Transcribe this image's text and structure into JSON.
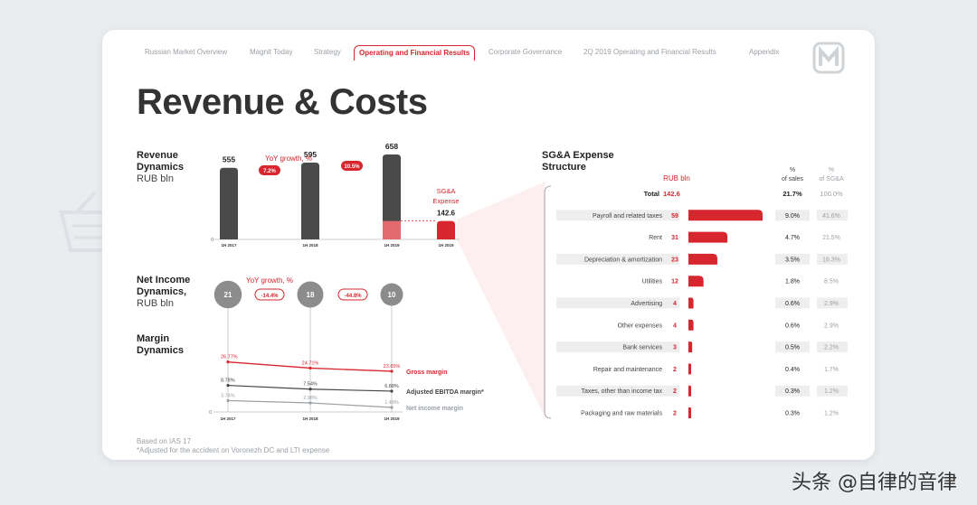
{
  "nav": {
    "items": [
      "Russian Market Overview",
      "Magnit Today",
      "Strategy",
      "Operating and Financial Results",
      "Corporate Governance",
      "2Q 2019 Operating and Financial Results",
      "Appendix"
    ],
    "active": "Operating and Financial Results"
  },
  "page_title": "Revenue & Costs",
  "revenue": {
    "label_line1": "Revenue",
    "label_line2": "Dynamics",
    "label_unit": "RUB bln",
    "yoy_label": "YoY growth, %",
    "sga_label_line1": "SG&A",
    "sga_label_line2": "Expense"
  },
  "net_income": {
    "label_line1": "Net Income",
    "label_line2": "Dynamics,",
    "label_unit": "RUB bln",
    "yoy_label": "YoY growth, %"
  },
  "margin": {
    "label_line1": "Margin",
    "label_line2": "Dynamics"
  },
  "sga": {
    "title_line1": "SG&A Expense",
    "title_line2": "Structure",
    "col_rub": "RUB bln",
    "col_sales_line1": "%",
    "col_sales_line2": "of sales",
    "col_sga_line1": "%",
    "col_sga_line2": "of SG&A"
  },
  "footnotes": {
    "line1": "Based on IAS 17",
    "line2": "*Adjusted for the accident on Voronezh DC and LTI expense"
  },
  "watermark": "头条 @自律的音律",
  "colors": {
    "accent": "#d7262e",
    "dark_bar": "#4a4a4a",
    "grey_bubble": "#8c8c8c",
    "muted": "#9aa0a6"
  },
  "chart_data": [
    {
      "type": "bar",
      "title": "Revenue Dynamics",
      "ylabel": "RUB bln",
      "categories": [
        "1H 2017",
        "1H 2018",
        "1H 2019",
        "1H 2019"
      ],
      "values": [
        555,
        595,
        658,
        142.6
      ],
      "value_labels": [
        "555",
        "595",
        "658",
        "142.6"
      ],
      "sga_in_revenue_2019": 142.6,
      "yoy_growth_labels": [
        "7.2%",
        "10.5%"
      ],
      "y_tick": "0"
    },
    {
      "type": "scatter",
      "title": "Net Income Dynamics",
      "ylabel": "RUB bln",
      "categories": [
        "1H 2017",
        "1H 2018",
        "1H 2019"
      ],
      "values": [
        21,
        18,
        10
      ],
      "value_labels": [
        "21",
        "18",
        "10"
      ],
      "yoy_growth_labels": [
        "-14.4%",
        "-44.8%"
      ]
    },
    {
      "type": "line",
      "title": "Margin Dynamics",
      "categories": [
        "1H 2017",
        "1H 2018",
        "1H 2019"
      ],
      "y_tick": "0",
      "series": [
        {
          "name": "Gross margin",
          "values": [
            26.77,
            24.71,
            23.65
          ],
          "labels": [
            "26.77%",
            "24.71%",
            "23.65%"
          ],
          "color": "#d7262e"
        },
        {
          "name": "Adjusted EBITDA margin*",
          "values": [
            8.78,
            7.54,
            6.88
          ],
          "labels": [
            "8.78%",
            "7.54%",
            "6.88%"
          ],
          "color": "#444444"
        },
        {
          "name": "Net income margin",
          "values": [
            3.74,
            2.98,
            1.49
          ],
          "labels": [
            "3.74%",
            "2.98%",
            "1.49%"
          ],
          "color": "#9aa0a6"
        }
      ]
    },
    {
      "type": "bar",
      "orientation": "horizontal",
      "title": "SG&A Expense Structure",
      "total": {
        "label": "Total",
        "rub": "142.6",
        "pct_sales": "21.7%",
        "pct_sga": "100.0%"
      },
      "rows": [
        {
          "label": "Payroll and related taxes",
          "rub": 59,
          "pct_sales": "9.0%",
          "pct_sga": "41.6%",
          "shaded": true
        },
        {
          "label": "Rent",
          "rub": 31,
          "pct_sales": "4.7%",
          "pct_sga": "21.5%",
          "shaded": false
        },
        {
          "label": "Depreciation & amortization",
          "rub": 23,
          "pct_sales": "3.5%",
          "pct_sga": "16.3%",
          "shaded": true
        },
        {
          "label": "Utilities",
          "rub": 12,
          "pct_sales": "1.8%",
          "pct_sga": "8.5%",
          "shaded": false
        },
        {
          "label": "Advertising",
          "rub": 4,
          "pct_sales": "0.6%",
          "pct_sga": "2.9%",
          "shaded": true
        },
        {
          "label": "Other expenses",
          "rub": 4,
          "pct_sales": "0.6%",
          "pct_sga": "2.9%",
          "shaded": false
        },
        {
          "label": "Bank services",
          "rub": 3,
          "pct_sales": "0.5%",
          "pct_sga": "2.2%",
          "shaded": true
        },
        {
          "label": "Repair and maintenance",
          "rub": 2,
          "pct_sales": "0.4%",
          "pct_sga": "1.7%",
          "shaded": false
        },
        {
          "label": "Taxes, other than income tax",
          "rub": 2,
          "pct_sales": "0.3%",
          "pct_sga": "1.2%",
          "shaded": true
        },
        {
          "label": "Packaging and raw materials",
          "rub": 2,
          "pct_sales": "0.3%",
          "pct_sga": "1.2%",
          "shaded": false
        }
      ]
    }
  ]
}
